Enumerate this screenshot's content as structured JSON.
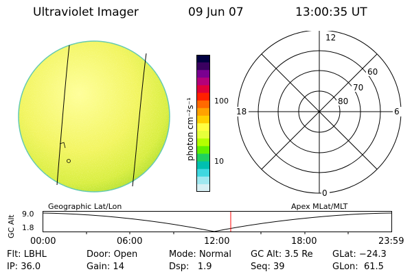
{
  "header": {
    "title": "Ultraviolet Imager",
    "date": "09 Jun 07",
    "time": "13:00:35 UT"
  },
  "colorbar": {
    "label": "photon cm⁻²s⁻¹",
    "ticks": [
      "100",
      "10"
    ],
    "colors": [
      "#000040",
      "#3a0060",
      "#7a0090",
      "#b4007a",
      "#e0003a",
      "#ff2000",
      "#ff6a00",
      "#ffa200",
      "#ffd000",
      "#ffff40",
      "#e6ff3a",
      "#b4ff00",
      "#60f000",
      "#20d060",
      "#00c0b0",
      "#40d8e0",
      "#a0e8f0",
      "#d8f0f4"
    ]
  },
  "polar_plot": {
    "mlt_labels": {
      "top": "12",
      "left": "18",
      "right": "6",
      "bottom": "0"
    },
    "lat_labels": [
      "60",
      "70",
      "80"
    ]
  },
  "timeline": {
    "left_label": "Geographic Lat/Lon",
    "right_label": "Apex  MLat/MLT",
    "ylabel": "GC Alt",
    "yticks": [
      "9.0",
      "1.8"
    ],
    "xticks": [
      "00:00",
      "06:00",
      "12:00",
      "18:00",
      "23:59"
    ],
    "marker_color": "#ff0000"
  },
  "status": {
    "row1": [
      {
        "key": "Flt:",
        "value": "LBHL"
      },
      {
        "key": "Door:",
        "value": "Open"
      },
      {
        "key": "Mode:",
        "value": "Normal"
      },
      {
        "key": "GC Alt:",
        "value": "3.5 Re"
      },
      {
        "key": "GLat:",
        "value": "−24.3"
      }
    ],
    "row2": [
      {
        "key": "IP:",
        "value": "36.0"
      },
      {
        "key": "Gain:",
        "value": "14"
      },
      {
        "key": "Dsp:",
        "value": "1.9"
      },
      {
        "key": "Seq:",
        "value": "39"
      },
      {
        "key": "GLon:",
        "value": "61.5"
      }
    ]
  }
}
